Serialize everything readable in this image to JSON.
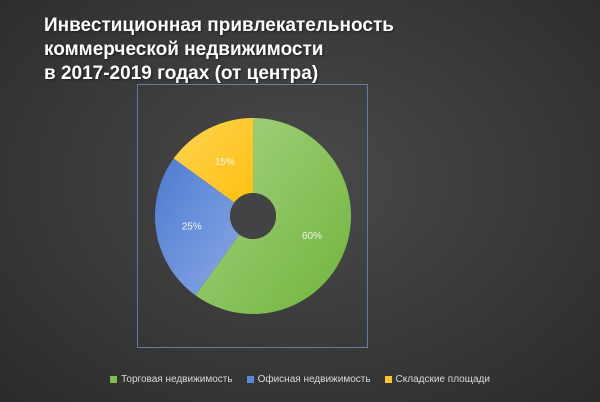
{
  "chart_data": {
    "type": "pie",
    "title": [
      "Инвестиционная привлекательность",
      "коммерческой недвижимости",
      "в 2017-2019 годах (от центра)"
    ],
    "slices": [
      {
        "name": "Торговая недвижимость",
        "value": 60,
        "label": "60%",
        "color": "#7fbf4d"
      },
      {
        "name": "Офисная недвижимость",
        "value": 25,
        "label": "25%",
        "color": "#5b86d6"
      },
      {
        "name": "Складские площади",
        "value": 15,
        "label": "15%",
        "color": "#ffc527"
      }
    ],
    "legend_position": "bottom",
    "donut": true
  }
}
